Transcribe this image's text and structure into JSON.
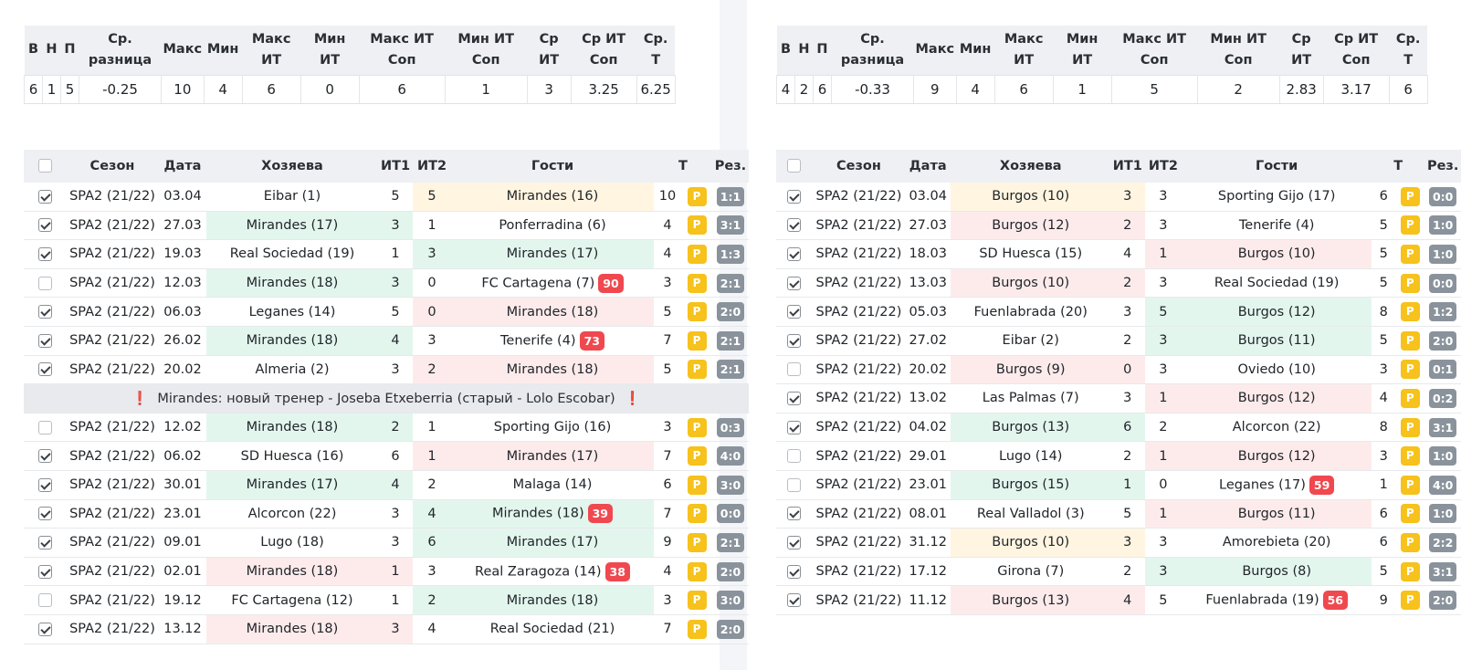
{
  "summary_headers": [
    "В",
    "Н",
    "П",
    "Ср. разница",
    "Макс",
    "Мин",
    "Макс ИТ",
    "Мин ИТ",
    "Макс ИТ Соп",
    "Мин ИТ Соп",
    "Ср ИТ",
    "Ср ИТ Соп",
    "Ср. Т"
  ],
  "games_headers": [
    "Сезон",
    "Дата",
    "Хозяева",
    "ИТ1",
    "ИТ2",
    "Гости",
    "Т",
    "Рез."
  ],
  "p_label": "P",
  "left": {
    "summary": [
      "6",
      "1",
      "5",
      "-0.25",
      "10",
      "4",
      "6",
      "0",
      "6",
      "1",
      "3",
      "3.25",
      "6.25"
    ],
    "note": {
      "text": "Mirandes: новый тренер - Joseba Etxeberria (старый - Lolo Escobar)",
      "mark": "❗",
      "after_row": 6
    },
    "rows": [
      {
        "checked": true,
        "season": "SPA2 (21/22)",
        "date": "03.04",
        "home": "Eibar (1)",
        "home_bg": "",
        "it1": "5",
        "it2": "5",
        "away": "Mirandes (16)",
        "away_bg": "yellow",
        "rank": "",
        "t": "10",
        "res": "1:1"
      },
      {
        "checked": true,
        "season": "SPA2 (21/22)",
        "date": "27.03",
        "home": "Mirandes (17)",
        "home_bg": "green",
        "it1": "3",
        "it2": "1",
        "away": "Ponferradina (6)",
        "away_bg": "",
        "rank": "",
        "t": "4",
        "res": "3:1"
      },
      {
        "checked": true,
        "season": "SPA2 (21/22)",
        "date": "19.03",
        "home": "Real Sociedad (19)",
        "home_bg": "",
        "it1": "1",
        "it2": "3",
        "away": "Mirandes (17)",
        "away_bg": "green",
        "rank": "",
        "t": "4",
        "res": "1:3"
      },
      {
        "checked": false,
        "season": "SPA2 (21/22)",
        "date": "12.03",
        "home": "Mirandes (18)",
        "home_bg": "green",
        "it1": "3",
        "it2": "0",
        "away": "FC Cartagena (7)",
        "away_bg": "",
        "rank": "90",
        "t": "3",
        "res": "2:1"
      },
      {
        "checked": true,
        "season": "SPA2 (21/22)",
        "date": "06.03",
        "home": "Leganes (14)",
        "home_bg": "",
        "it1": "5",
        "it2": "0",
        "away": "Mirandes (18)",
        "away_bg": "red",
        "rank": "",
        "t": "5",
        "res": "2:0"
      },
      {
        "checked": true,
        "season": "SPA2 (21/22)",
        "date": "26.02",
        "home": "Mirandes (18)",
        "home_bg": "green",
        "it1": "4",
        "it2": "3",
        "away": "Tenerife (4)",
        "away_bg": "",
        "rank": "73",
        "t": "7",
        "res": "2:1"
      },
      {
        "checked": true,
        "season": "SPA2 (21/22)",
        "date": "20.02",
        "home": "Almeria (2)",
        "home_bg": "",
        "it1": "3",
        "it2": "2",
        "away": "Mirandes (18)",
        "away_bg": "red",
        "rank": "",
        "t": "5",
        "res": "2:1"
      },
      {
        "checked": false,
        "season": "SPA2 (21/22)",
        "date": "12.02",
        "home": "Mirandes (18)",
        "home_bg": "green",
        "it1": "2",
        "it2": "1",
        "away": "Sporting Gijo (16)",
        "away_bg": "",
        "rank": "",
        "t": "3",
        "res": "0:3"
      },
      {
        "checked": true,
        "season": "SPA2 (21/22)",
        "date": "06.02",
        "home": "SD Huesca (16)",
        "home_bg": "",
        "it1": "6",
        "it2": "1",
        "away": "Mirandes (17)",
        "away_bg": "red",
        "rank": "",
        "t": "7",
        "res": "4:0"
      },
      {
        "checked": true,
        "season": "SPA2 (21/22)",
        "date": "30.01",
        "home": "Mirandes (17)",
        "home_bg": "green",
        "it1": "4",
        "it2": "2",
        "away": "Malaga (14)",
        "away_bg": "",
        "rank": "",
        "t": "6",
        "res": "3:0"
      },
      {
        "checked": true,
        "season": "SPA2 (21/22)",
        "date": "23.01",
        "home": "Alcorcon (22)",
        "home_bg": "",
        "it1": "3",
        "it2": "4",
        "away": "Mirandes (18)",
        "away_bg": "green",
        "rank": "39",
        "t": "7",
        "res": "0:0"
      },
      {
        "checked": true,
        "season": "SPA2 (21/22)",
        "date": "09.01",
        "home": "Lugo (18)",
        "home_bg": "",
        "it1": "3",
        "it2": "6",
        "away": "Mirandes (17)",
        "away_bg": "green",
        "rank": "",
        "t": "9",
        "res": "2:1"
      },
      {
        "checked": true,
        "season": "SPA2 (21/22)",
        "date": "02.01",
        "home": "Mirandes (18)",
        "home_bg": "red",
        "it1": "1",
        "it2": "3",
        "away": "Real Zaragoza (14)",
        "away_bg": "",
        "rank": "38",
        "t": "4",
        "res": "2:0"
      },
      {
        "checked": false,
        "season": "SPA2 (21/22)",
        "date": "19.12",
        "home": "FC Cartagena (12)",
        "home_bg": "",
        "it1": "1",
        "it2": "2",
        "away": "Mirandes (18)",
        "away_bg": "green",
        "rank": "",
        "t": "3",
        "res": "3:0"
      },
      {
        "checked": true,
        "season": "SPA2 (21/22)",
        "date": "13.12",
        "home": "Mirandes (18)",
        "home_bg": "red",
        "it1": "3",
        "it2": "4",
        "away": "Real Sociedad (21)",
        "away_bg": "",
        "rank": "",
        "t": "7",
        "res": "2:0"
      }
    ]
  },
  "right": {
    "summary": [
      "4",
      "2",
      "6",
      "-0.33",
      "9",
      "4",
      "6",
      "1",
      "5",
      "2",
      "2.83",
      "3.17",
      "6"
    ],
    "rows": [
      {
        "checked": true,
        "season": "SPA2 (21/22)",
        "date": "03.04",
        "home": "Burgos (10)",
        "home_bg": "yellow",
        "it1": "3",
        "it2": "3",
        "away": "Sporting Gijo (17)",
        "away_bg": "",
        "rank": "",
        "t": "6",
        "res": "0:0"
      },
      {
        "checked": true,
        "season": "SPA2 (21/22)",
        "date": "27.03",
        "home": "Burgos (12)",
        "home_bg": "red",
        "it1": "2",
        "it2": "3",
        "away": "Tenerife (4)",
        "away_bg": "",
        "rank": "",
        "t": "5",
        "res": "1:0"
      },
      {
        "checked": true,
        "season": "SPA2 (21/22)",
        "date": "18.03",
        "home": "SD Huesca (15)",
        "home_bg": "",
        "it1": "4",
        "it2": "1",
        "away": "Burgos (10)",
        "away_bg": "red",
        "rank": "",
        "t": "5",
        "res": "1:0"
      },
      {
        "checked": true,
        "season": "SPA2 (21/22)",
        "date": "13.03",
        "home": "Burgos (10)",
        "home_bg": "red",
        "it1": "2",
        "it2": "3",
        "away": "Real Sociedad (19)",
        "away_bg": "",
        "rank": "",
        "t": "5",
        "res": "0:0"
      },
      {
        "checked": true,
        "season": "SPA2 (21/22)",
        "date": "05.03",
        "home": "Fuenlabrada (20)",
        "home_bg": "",
        "it1": "3",
        "it2": "5",
        "away": "Burgos (12)",
        "away_bg": "green",
        "rank": "",
        "t": "8",
        "res": "1:2"
      },
      {
        "checked": true,
        "season": "SPA2 (21/22)",
        "date": "27.02",
        "home": "Eibar (2)",
        "home_bg": "",
        "it1": "2",
        "it2": "3",
        "away": "Burgos (11)",
        "away_bg": "green",
        "rank": "",
        "t": "5",
        "res": "2:0"
      },
      {
        "checked": false,
        "season": "SPA2 (21/22)",
        "date": "20.02",
        "home": "Burgos (9)",
        "home_bg": "red",
        "it1": "0",
        "it2": "3",
        "away": "Oviedo (10)",
        "away_bg": "",
        "rank": "",
        "t": "3",
        "res": "0:1"
      },
      {
        "checked": true,
        "season": "SPA2 (21/22)",
        "date": "13.02",
        "home": "Las Palmas (7)",
        "home_bg": "",
        "it1": "3",
        "it2": "1",
        "away": "Burgos (12)",
        "away_bg": "red",
        "rank": "",
        "t": "4",
        "res": "0:2"
      },
      {
        "checked": true,
        "season": "SPA2 (21/22)",
        "date": "04.02",
        "home": "Burgos (13)",
        "home_bg": "green",
        "it1": "6",
        "it2": "2",
        "away": "Alcorcon (22)",
        "away_bg": "",
        "rank": "",
        "t": "8",
        "res": "3:1"
      },
      {
        "checked": false,
        "season": "SPA2 (21/22)",
        "date": "29.01",
        "home": "Lugo (14)",
        "home_bg": "",
        "it1": "2",
        "it2": "1",
        "away": "Burgos (12)",
        "away_bg": "red",
        "rank": "",
        "t": "3",
        "res": "1:0"
      },
      {
        "checked": false,
        "season": "SPA2 (21/22)",
        "date": "23.01",
        "home": "Burgos (15)",
        "home_bg": "green",
        "it1": "1",
        "it2": "0",
        "away": "Leganes (17)",
        "away_bg": "",
        "rank": "59",
        "t": "1",
        "res": "4:0"
      },
      {
        "checked": true,
        "season": "SPA2 (21/22)",
        "date": "08.01",
        "home": "Real Valladol (3)",
        "home_bg": "",
        "it1": "5",
        "it2": "1",
        "away": "Burgos (11)",
        "away_bg": "red",
        "rank": "",
        "t": "6",
        "res": "1:0"
      },
      {
        "checked": true,
        "season": "SPA2 (21/22)",
        "date": "31.12",
        "home": "Burgos (10)",
        "home_bg": "yellow",
        "it1": "3",
        "it2": "3",
        "away": "Amorebieta (20)",
        "away_bg": "",
        "rank": "",
        "t": "6",
        "res": "2:2"
      },
      {
        "checked": true,
        "season": "SPA2 (21/22)",
        "date": "17.12",
        "home": "Girona (7)",
        "home_bg": "",
        "it1": "2",
        "it2": "3",
        "away": "Burgos (8)",
        "away_bg": "green",
        "rank": "",
        "t": "5",
        "res": "3:1"
      },
      {
        "checked": true,
        "season": "SPA2 (21/22)",
        "date": "11.12",
        "home": "Burgos (13)",
        "home_bg": "red",
        "it1": "4",
        "it2": "5",
        "away": "Fuenlabrada (19)",
        "away_bg": "",
        "rank": "56",
        "t": "9",
        "res": "2:0"
      }
    ]
  }
}
